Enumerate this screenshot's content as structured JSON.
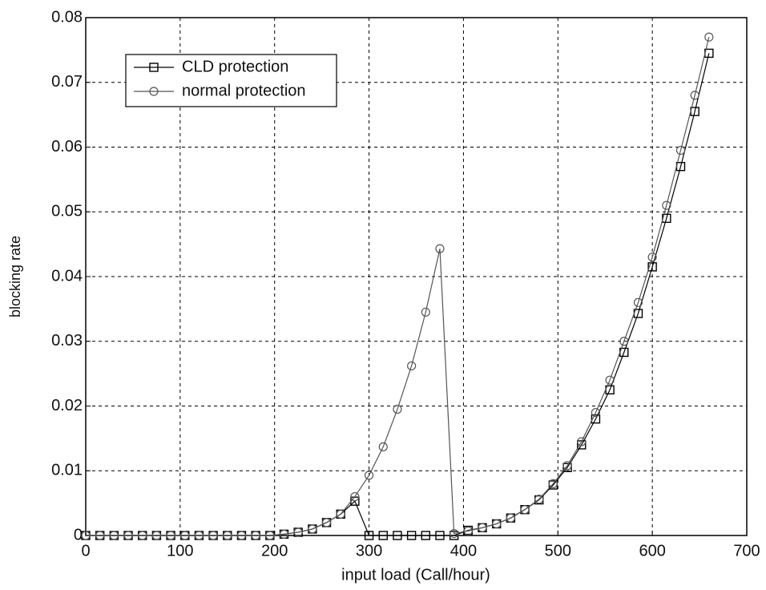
{
  "chart_data": {
    "type": "line",
    "xlabel": "input load (Call/hour)",
    "ylabel": "blocking rate",
    "x": [
      0,
      15,
      30,
      45,
      60,
      75,
      90,
      105,
      120,
      135,
      150,
      165,
      180,
      195,
      210,
      225,
      240,
      255,
      270,
      285,
      300,
      315,
      330,
      345,
      360,
      375,
      390,
      405,
      420,
      435,
      450,
      465,
      480,
      495,
      510,
      525,
      540,
      555,
      570,
      585,
      600,
      615,
      630,
      645,
      660
    ],
    "series": [
      {
        "name": "CLD protection",
        "color": "#000000",
        "marker": "square",
        "values": [
          0,
          0,
          0,
          0,
          0,
          0,
          0,
          0,
          0,
          0,
          0,
          0,
          0,
          0,
          0.0002,
          0.0005,
          0.001,
          0.002,
          0.0033,
          0.0053,
          0,
          0,
          0,
          0,
          0,
          0,
          0,
          0.0008,
          0.0012,
          0.0018,
          0.0027,
          0.004,
          0.0055,
          0.0078,
          0.0105,
          0.014,
          0.018,
          0.0225,
          0.0283,
          0.0343,
          0.0415,
          0.049,
          0.057,
          0.0655,
          0.0745
        ]
      },
      {
        "name": "normal protection",
        "color": "#555555",
        "marker": "circle",
        "values": [
          0,
          0,
          0,
          0,
          0,
          0,
          0,
          0,
          0,
          0,
          0,
          0,
          0,
          0,
          0.0002,
          0.0005,
          0.001,
          0.002,
          0.0033,
          0.006,
          0.0093,
          0.0137,
          0.0195,
          0.0262,
          0.0345,
          0.0443,
          0.0003,
          0.0007,
          0.0012,
          0.0018,
          0.0027,
          0.004,
          0.0056,
          0.008,
          0.0108,
          0.0145,
          0.019,
          0.024,
          0.03,
          0.036,
          0.043,
          0.051,
          0.0595,
          0.068,
          0.077
        ]
      }
    ],
    "xlim": [
      0,
      700
    ],
    "xticks": [
      0,
      100,
      200,
      300,
      400,
      500,
      600,
      700
    ],
    "ylim": [
      0,
      0.08
    ],
    "yticks": [
      0,
      0.01,
      0.02,
      0.03,
      0.04,
      0.05,
      0.06,
      0.07,
      0.08
    ],
    "grid": true,
    "legend": "upper left"
  }
}
